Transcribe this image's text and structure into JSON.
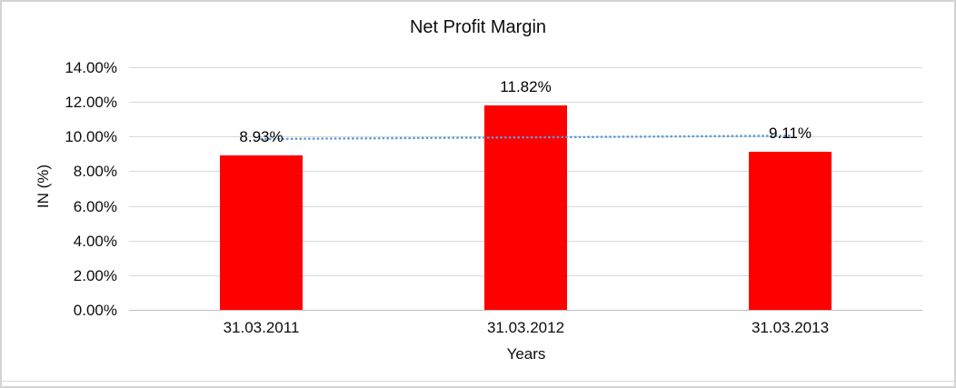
{
  "chart_data": {
    "type": "bar",
    "title": "Net Profit Margin",
    "xlabel": "Years",
    "ylabel": "IN (%)",
    "categories": [
      "31.03.2011",
      "31.03.2012",
      "31.03.2013"
    ],
    "values": [
      8.93,
      11.82,
      9.11
    ],
    "value_labels": [
      "8.93%",
      "11.82%",
      "9.11%"
    ],
    "ylim": [
      0,
      14
    ],
    "ytick_values": [
      0,
      2,
      4,
      6,
      8,
      10,
      12,
      14
    ],
    "ytick_labels": [
      "0.00%",
      "2.00%",
      "4.00%",
      "6.00%",
      "8.00%",
      "10.00%",
      "12.00%",
      "14.00%"
    ],
    "grid": true,
    "legend": "none",
    "bar_color": "#FF0000",
    "trendline": {
      "type": "linear",
      "style": "dotted",
      "color": "#5B9BD5",
      "values": [
        9.86,
        9.955,
        10.05
      ]
    }
  }
}
